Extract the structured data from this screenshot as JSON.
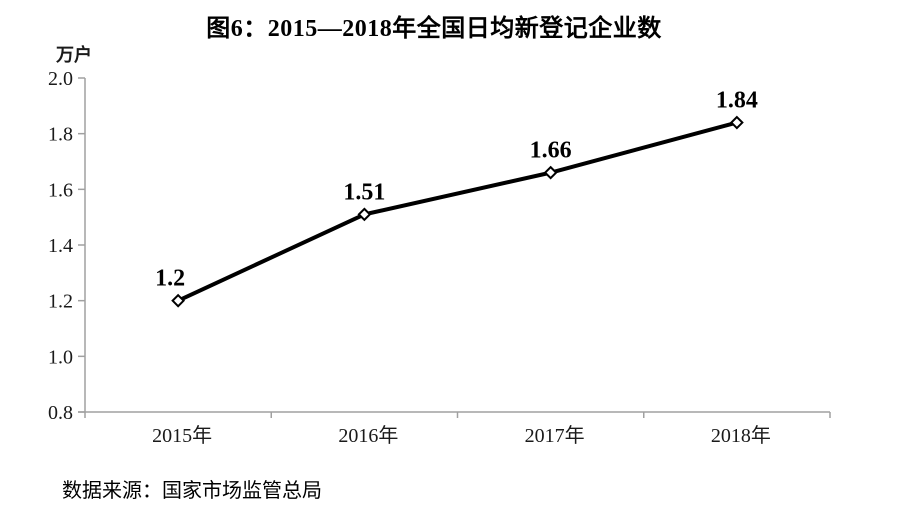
{
  "figure": {
    "title": "图6：2015—2018年全国日均新登记企业数",
    "unit_label": "万户",
    "source": "数据来源：国家市场监管总局"
  },
  "chart_data": {
    "type": "line",
    "title": "图6：2015—2018年全国日均新登记企业数",
    "ylabel": "万户",
    "xlabel": "",
    "categories": [
      "2015年",
      "2016年",
      "2017年",
      "2018年"
    ],
    "values": [
      1.2,
      1.51,
      1.66,
      1.84
    ],
    "value_labels": [
      "1.2",
      "1.51",
      "1.66",
      "1.84"
    ],
    "ylim": [
      0.8,
      2.0
    ],
    "ytick_labels": [
      "2.0",
      "1.8",
      "1.6",
      "1.4",
      "1.2",
      "1.0",
      "0.8"
    ],
    "grid": false,
    "legend": "none",
    "marker": "open-diamond",
    "line_color": "#000000",
    "marker_fill": "#ffffff",
    "axis_color": "#a0a0a0",
    "label_color": "#000000",
    "source": "数据来源：国家市场监管总局"
  }
}
